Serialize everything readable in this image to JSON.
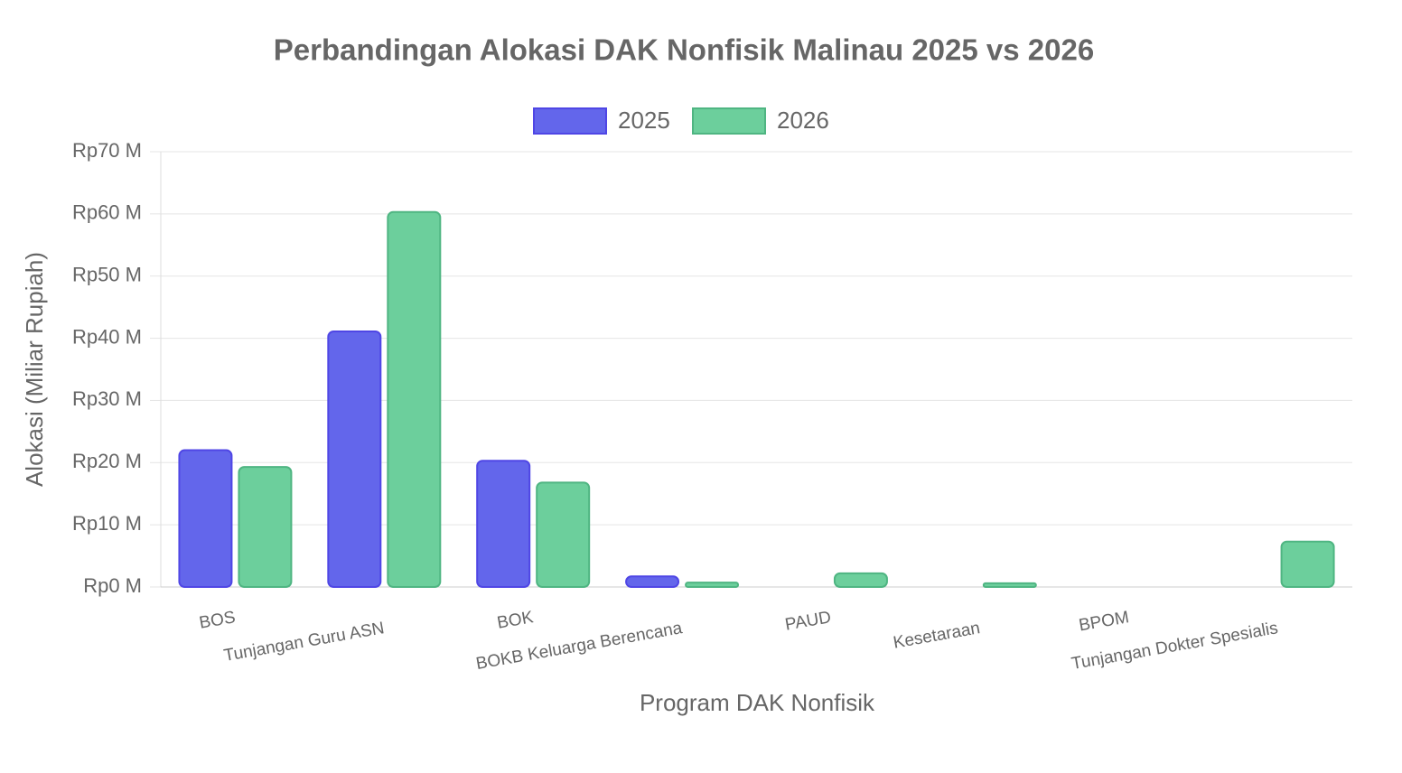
{
  "chart_data": {
    "type": "bar",
    "title": "Perbandingan Alokasi DAK Nonfisik Malinau 2025 vs 2026",
    "x_label": "Program DAK Nonfisik",
    "y_label": "Alokasi (Miliar Rupiah)",
    "categories": [
      "BOS",
      "Tunjangan Guru ASN",
      "BOK",
      "BOKB Keluarga Berencana",
      "PAUD",
      "Kesetaraan",
      "BPOM",
      "Tunjangan Dokter Spesialis"
    ],
    "series": [
      {
        "name": "2025",
        "color": "#6366eb",
        "border": "#4f46e5",
        "values": [
          22,
          41.1,
          20.3,
          1.7,
          0,
          0,
          0,
          0
        ]
      },
      {
        "name": "2026",
        "color": "#6ccf9c",
        "border": "#4fb582",
        "values": [
          19.3,
          60.3,
          16.8,
          0.7,
          2.2,
          0.6,
          0,
          7.3
        ]
      }
    ],
    "ylim": [
      0,
      70
    ],
    "yticks": [
      {
        "value": 0,
        "label": "Rp0 M"
      },
      {
        "value": 10,
        "label": "Rp10 M"
      },
      {
        "value": 20,
        "label": "Rp20 M"
      },
      {
        "value": 30,
        "label": "Rp30 M"
      },
      {
        "value": 40,
        "label": "Rp40 M"
      },
      {
        "value": 50,
        "label": "Rp50 M"
      },
      {
        "value": 60,
        "label": "Rp60 M"
      },
      {
        "value": 70,
        "label": "Rp70 M"
      }
    ],
    "grid": true,
    "legend": "top"
  }
}
